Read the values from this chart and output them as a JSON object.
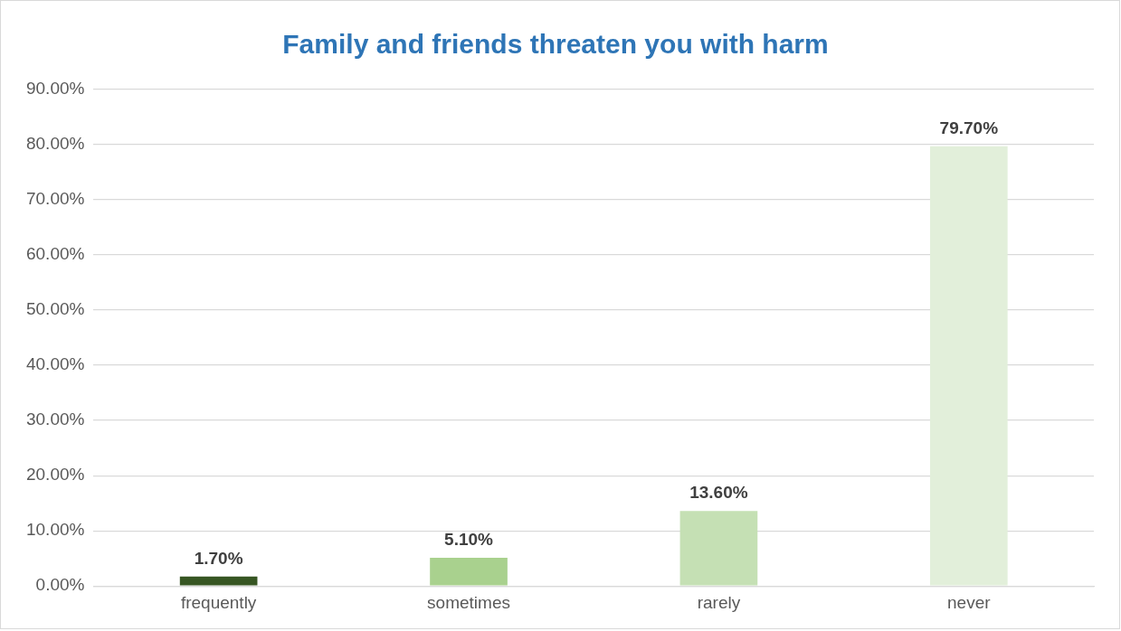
{
  "chart_data": {
    "type": "bar",
    "title": "Family and friends threaten you with harm",
    "categories": [
      "frequently",
      "sometimes",
      "rarely",
      "never"
    ],
    "values": [
      1.7,
      5.1,
      13.6,
      79.7
    ],
    "colors": [
      "#375623",
      "#a9d18e",
      "#c5e0b4",
      "#e2efda"
    ],
    "value_labels": [
      "1.70%",
      "5.10%",
      "13.60%",
      "79.70%"
    ],
    "ylim": [
      0,
      90
    ],
    "yticks": [
      {
        "value": 0,
        "label": "0.00%"
      },
      {
        "value": 10,
        "label": "10.00%"
      },
      {
        "value": 20,
        "label": "20.00%"
      },
      {
        "value": 30,
        "label": "30.00%"
      },
      {
        "value": 40,
        "label": "40.00%"
      },
      {
        "value": 50,
        "label": "50.00%"
      },
      {
        "value": 60,
        "label": "60.00%"
      },
      {
        "value": 70,
        "label": "70.00%"
      },
      {
        "value": 80,
        "label": "80.00%"
      },
      {
        "value": 90,
        "label": "90.00%"
      }
    ],
    "grid": "y",
    "legend": false
  }
}
